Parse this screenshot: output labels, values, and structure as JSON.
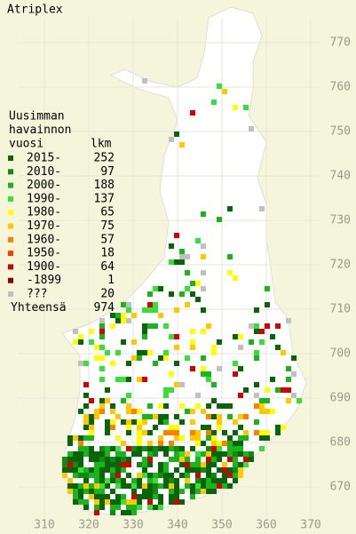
{
  "title": "Atriplex",
  "legend": {
    "header": [
      "Uusimman",
      "havainnon",
      "vuosi"
    ],
    "count_header": "lkm",
    "rows": [
      {
        "label": "2015-",
        "count": 252,
        "color": "#0a640a"
      },
      {
        "label": "2010-",
        "count": 97,
        "color": "#128a12"
      },
      {
        "label": "2000-",
        "count": 188,
        "color": "#1cb41c"
      },
      {
        "label": "1990-",
        "count": 137,
        "color": "#3ade3a"
      },
      {
        "label": "1980-",
        "count": 65,
        "color": "#ffff00"
      },
      {
        "label": "1970-",
        "count": 75,
        "color": "#ffc800"
      },
      {
        "label": "1960-",
        "count": 57,
        "color": "#ff7f00"
      },
      {
        "label": "1950-",
        "count": 18,
        "color": "#ff3c00"
      },
      {
        "label": "1900-",
        "count": 64,
        "color": "#d20000"
      },
      {
        "label": "-1899",
        "count": 1,
        "color": "#8b0000"
      },
      {
        "label": "???",
        "count": 20,
        "color": "#c0c0c0"
      }
    ],
    "total_label": "Yhteensä",
    "total": 974
  },
  "axes": {
    "yticks": [
      770,
      760,
      750,
      740,
      730,
      720,
      710,
      700,
      690,
      680,
      670
    ],
    "xticks": [
      310,
      320,
      330,
      340,
      350,
      360,
      370
    ]
  }
}
